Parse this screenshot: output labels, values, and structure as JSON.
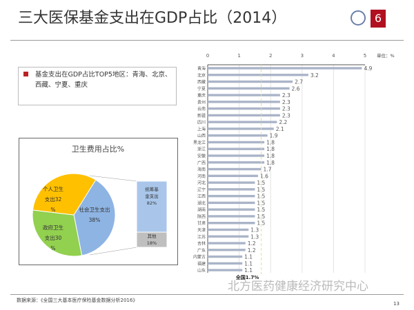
{
  "title": "三大医保基金支出在GDP占比（2014）",
  "note": "基金支出在GDP占比TOP5地区：青海、北京、西藏、宁夏、重庆",
  "source": "数据来源：《全国三大基本医疗保险基金数据分析2016》",
  "page_number": "13",
  "watermark": "北方医药健康经济研究中心",
  "chart_data": [
    {
      "type": "bar",
      "orientation": "horizontal",
      "unit_label": "单位：%",
      "xlim": [
        0,
        5
      ],
      "xticks": [
        "0",
        "1",
        "2",
        "3",
        "4",
        "5"
      ],
      "categories": [
        "青海",
        "北京",
        "西藏",
        "宁夏",
        "重庆",
        "贵州",
        "云南",
        "新疆",
        "四川",
        "上海",
        "山西",
        "黑龙江",
        "浙江",
        "安徽",
        "广西",
        "海南",
        "河南",
        "河北",
        "辽宁",
        "江西",
        "湖北",
        "湖南",
        "陕西",
        "甘肃",
        "天津",
        "江苏",
        "吉林",
        "广东",
        "内蒙古",
        "福建",
        "山东"
      ],
      "values": [
        4.9,
        3.2,
        2.7,
        2.6,
        2.3,
        2.3,
        2.3,
        2.3,
        2.2,
        2.1,
        1.9,
        1.8,
        1.8,
        1.8,
        1.8,
        1.7,
        1.6,
        1.5,
        1.5,
        1.5,
        1.5,
        1.5,
        1.5,
        1.5,
        1.3,
        1.3,
        1.2,
        1.2,
        1.1,
        1.1,
        1.1
      ],
      "reference_line": {
        "value": 1.7,
        "label": "全国1.7%"
      },
      "bar_color": "#aab4c8"
    },
    {
      "type": "pie",
      "title": "卫生费用占比%",
      "slices": [
        {
          "label": "社会卫生支出",
          "value": 38,
          "value_label": "38%",
          "color": "#8eb4e3"
        },
        {
          "label": "政府卫生支出",
          "value": 30,
          "value_label": "30 %",
          "color": "#92d050"
        },
        {
          "label": "个人卫生支出",
          "value": 32,
          "value_label": "32 %",
          "color": "#ffc000"
        }
      ],
      "breakdown": {
        "of": "社会卫生支出",
        "parts": [
          {
            "label": "统筹基金支出",
            "value": 82,
            "value_label": "82%",
            "color": "#a9c6ea"
          },
          {
            "label": "其他",
            "value": 18,
            "value_label": "18%",
            "color": "#bfbfbf"
          }
        ]
      }
    }
  ]
}
